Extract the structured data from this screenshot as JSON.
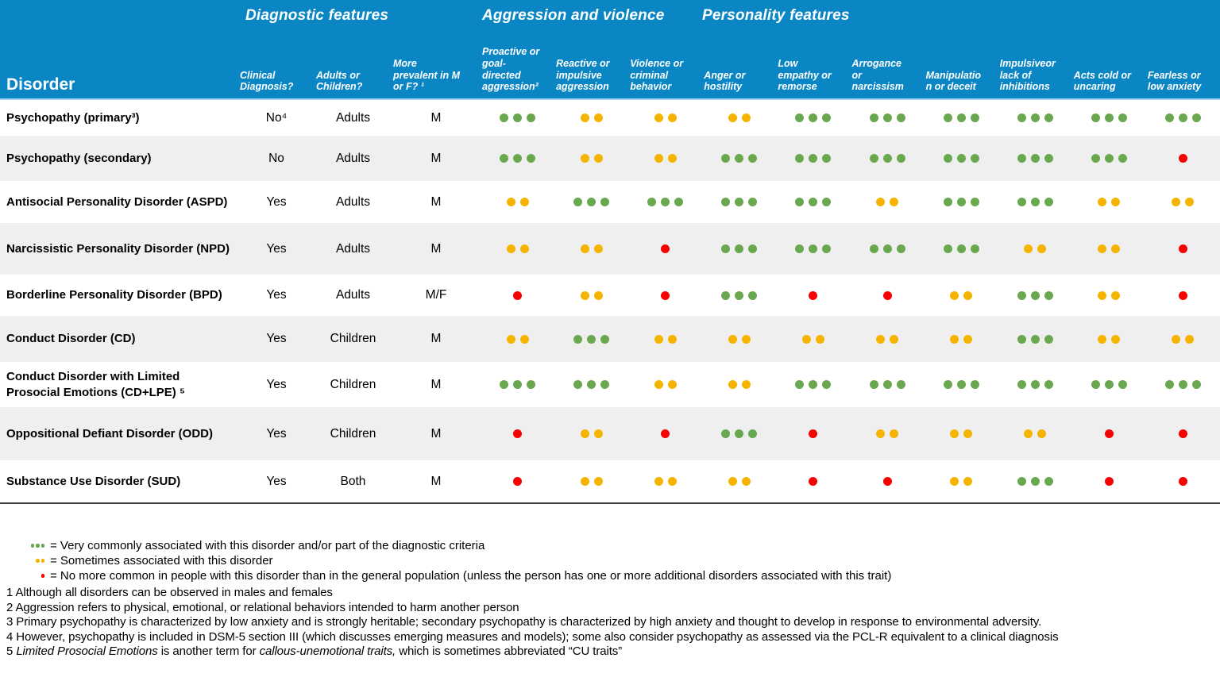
{
  "chart_data": {
    "type": "table",
    "corner_label": "Disorder",
    "groups": [
      {
        "label": "Diagnostic features",
        "columns": [
          "clinical-diagnosis",
          "adults-children",
          "prevalence"
        ]
      },
      {
        "label": "Aggression and violence",
        "columns": [
          "proactive-aggression",
          "reactive-aggression",
          "violence-criminal"
        ]
      },
      {
        "label": "Personality features",
        "columns": [
          "anger-hostility",
          "low-empathy",
          "arrogance-narcissism",
          "manipulation-deceit",
          "impulsive",
          "acts-cold",
          "fearless"
        ]
      }
    ],
    "columns": [
      {
        "key": "clinical-diagnosis",
        "label": "Clinical\nDiagnosis?"
      },
      {
        "key": "adults-children",
        "label": "Adults or\nChildren?"
      },
      {
        "key": "prevalence",
        "label": "More\nprevalent in M\nor F? ¹"
      },
      {
        "key": "proactive-aggression",
        "label": "Proactive or\ngoal-\ndirected\naggression²"
      },
      {
        "key": "reactive-aggression",
        "label": "Reactive or\nimpulsive\naggression"
      },
      {
        "key": "violence-criminal",
        "label": "Violence or\ncriminal\nbehavior"
      },
      {
        "key": "anger-hostility",
        "label": "Anger or\nhostility"
      },
      {
        "key": "low-empathy",
        "label": "Low\nempathy or\nremorse"
      },
      {
        "key": "arrogance-narcissism",
        "label": "Arrogance\nor\nnarcissism"
      },
      {
        "key": "manipulation-deceit",
        "label": "Manipulatio\nn or deceit"
      },
      {
        "key": "impulsive",
        "label": "Impulsiveor\nlack of\ninhibitions"
      },
      {
        "key": "acts-cold",
        "label": "Acts cold or\nuncaring"
      },
      {
        "key": "fearless",
        "label": "Fearless or\nlow anxiety"
      }
    ],
    "rating_codes": {
      "g3": "very-common",
      "y2": "sometimes",
      "r1": "not-more-common"
    },
    "rows": [
      {
        "disorder": "Psychopathy (primary³)",
        "clinical": "No⁴",
        "age": "Adults",
        "sex": "M",
        "traits": [
          "g3",
          "y2",
          "y2",
          "y2",
          "g3",
          "g3",
          "g3",
          "g3",
          "g3",
          "g3"
        ]
      },
      {
        "disorder": "Psychopathy (secondary)",
        "clinical": "No",
        "age": "Adults",
        "sex": "M",
        "traits": [
          "g3",
          "y2",
          "y2",
          "g3",
          "g3",
          "g3",
          "g3",
          "g3",
          "g3",
          "r1"
        ]
      },
      {
        "disorder": "Antisocial Personality Disorder (ASPD)",
        "clinical": "Yes",
        "age": "Adults",
        "sex": "M",
        "traits": [
          "y2",
          "g3",
          "g3",
          "g3",
          "g3",
          "y2",
          "g3",
          "g3",
          "y2",
          "y2"
        ]
      },
      {
        "disorder": "Narcissistic Personality Disorder (NPD)",
        "clinical": "Yes",
        "age": "Adults",
        "sex": "M",
        "traits": [
          "y2",
          "y2",
          "r1",
          "g3",
          "g3",
          "g3",
          "g3",
          "y2",
          "y2",
          "r1"
        ]
      },
      {
        "disorder": "Borderline Personality Disorder (BPD)",
        "clinical": "Yes",
        "age": "Adults",
        "sex": "M/F",
        "traits": [
          "r1",
          "y2",
          "r1",
          "g3",
          "r1",
          "r1",
          "y2",
          "g3",
          "y2",
          "r1"
        ]
      },
      {
        "disorder": "Conduct Disorder (CD)",
        "clinical": "Yes",
        "age": "Children",
        "sex": "M",
        "traits": [
          "y2",
          "g3",
          "y2",
          "y2",
          "y2",
          "y2",
          "y2",
          "g3",
          "y2",
          "y2"
        ]
      },
      {
        "disorder": "Conduct Disorder with Limited Prosocial Emotions (CD+LPE) ⁵",
        "clinical": "Yes",
        "age": "Children",
        "sex": "M",
        "traits": [
          "g3",
          "g3",
          "y2",
          "y2",
          "g3",
          "g3",
          "g3",
          "g3",
          "g3",
          "g3"
        ]
      },
      {
        "disorder": "Oppositional Defiant Disorder (ODD)",
        "clinical": "Yes",
        "age": "Children",
        "sex": "M",
        "traits": [
          "r1",
          "y2",
          "r1",
          "g3",
          "r1",
          "y2",
          "y2",
          "y2",
          "r1",
          "r1"
        ]
      },
      {
        "disorder": "Substance Use Disorder (SUD)",
        "clinical": "Yes",
        "age": "Both",
        "sex": "M",
        "traits": [
          "r1",
          "y2",
          "y2",
          "y2",
          "r1",
          "r1",
          "y2",
          "g3",
          "r1",
          "r1"
        ]
      }
    ],
    "legend": [
      {
        "dots": "g3",
        "text": "= Very commonly associated with this disorder and/or part of the diagnostic criteria"
      },
      {
        "dots": "y2",
        "text": "= Sometimes associated with this disorder"
      },
      {
        "dots": "r1",
        "text": "= No more common in people with this disorder than in the general population (unless the person has one or more additional disorders associated with this trait)"
      }
    ],
    "footnotes": [
      [
        {
          "t": "1 Although all disorders can be observed in males and females"
        }
      ],
      [
        {
          "t": "2 Aggression refers to physical, emotional, or relational behaviors intended to harm another person"
        }
      ],
      [
        {
          "t": "3 Primary psychopathy is characterized by low anxiety and is strongly heritable; secondary psychopathy is characterized by high anxiety and thought to develop in response to environmental adversity."
        }
      ],
      [
        {
          "t": "4 However, psychopathy is included in DSM-5 section III (which discusses emerging measures and models); some also consider psychopathy as assessed via the PCL-R equivalent to a clinical diagnosis"
        }
      ],
      [
        {
          "t": "5 "
        },
        {
          "t": "Limited Prosocial Emotions",
          "i": true
        },
        {
          "t": " is another term for "
        },
        {
          "t": "callous-unemotional traits,",
          "i": true
        },
        {
          "t": " which is sometimes abbreviated “CU traits”"
        }
      ]
    ]
  },
  "colors": {
    "header_bg": "#0b86c5",
    "divider": "#a5d3ef",
    "stripe": "#efefef",
    "green": "#6aa84f",
    "yellow": "#f4b400",
    "red": "#f80000",
    "bottom": "#3e3e3e"
  }
}
